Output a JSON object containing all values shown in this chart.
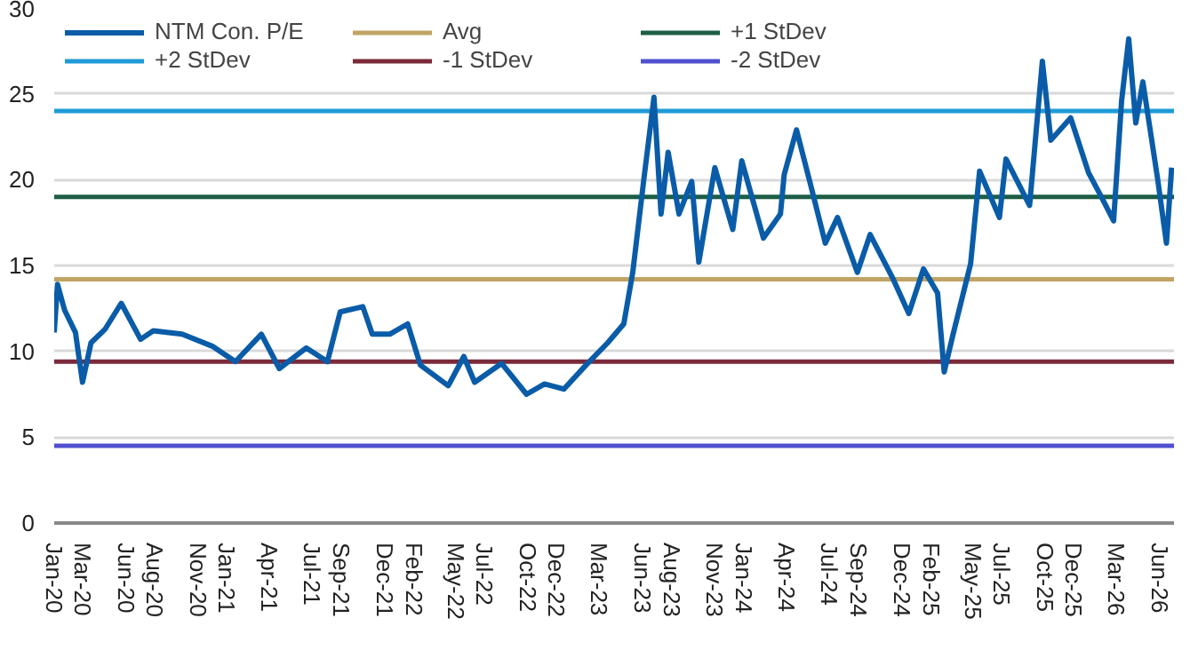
{
  "chart_data": {
    "type": "line",
    "legend": "top",
    "grid": "y",
    "line_style": "solid",
    "marker": "none",
    "xlim": [
      "2020-01-01",
      "2026-07-01"
    ],
    "ylim": [
      0,
      30
    ],
    "yticks": [
      0,
      5,
      10,
      15,
      20,
      25,
      30
    ],
    "xticks": [
      {
        "value": "2020-01-01",
        "label": "Jan-20"
      },
      {
        "value": "2020-03-01",
        "label": "Mar-20"
      },
      {
        "value": "2020-06-01",
        "label": "Jun-20"
      },
      {
        "value": "2020-08-01",
        "label": "Aug-20"
      },
      {
        "value": "2020-11-01",
        "label": "Nov-20"
      },
      {
        "value": "2021-01-01",
        "label": "Jan-21"
      },
      {
        "value": "2021-04-01",
        "label": "Apr-21"
      },
      {
        "value": "2021-07-01",
        "label": "Jul-21"
      },
      {
        "value": "2021-09-01",
        "label": "Sep-21"
      },
      {
        "value": "2021-12-01",
        "label": "Dec-21"
      },
      {
        "value": "2022-02-01",
        "label": "Feb-22"
      },
      {
        "value": "2022-05-01",
        "label": "May-22"
      },
      {
        "value": "2022-07-01",
        "label": "Jul-22"
      },
      {
        "value": "2022-10-01",
        "label": "Oct-22"
      },
      {
        "value": "2022-12-01",
        "label": "Dec-22"
      },
      {
        "value": "2023-03-01",
        "label": "Mar-23"
      },
      {
        "value": "2023-06-01",
        "label": "Jun-23"
      },
      {
        "value": "2023-08-01",
        "label": "Aug-23"
      },
      {
        "value": "2023-11-01",
        "label": "Nov-23"
      },
      {
        "value": "2024-01-01",
        "label": "Jan-24"
      },
      {
        "value": "2024-04-01",
        "label": "Apr-24"
      },
      {
        "value": "2024-07-01",
        "label": "Jul-24"
      },
      {
        "value": "2024-09-01",
        "label": "Sep-24"
      },
      {
        "value": "2024-12-01",
        "label": "Dec-24"
      },
      {
        "value": "2025-02-01",
        "label": "Feb-25"
      },
      {
        "value": "2025-05-01",
        "label": "May-25"
      },
      {
        "value": "2025-07-01",
        "label": "Jul-25"
      },
      {
        "value": "2025-10-01",
        "label": "Oct-25"
      },
      {
        "value": "2025-12-01",
        "label": "Dec-25"
      },
      {
        "value": "2026-03-01",
        "label": "Mar-26"
      },
      {
        "value": "2026-06-01",
        "label": "Jun-26"
      }
    ],
    "series": [
      {
        "name": "NTM Con. P/E",
        "color": "#0a5ca8",
        "x": [
          "2020-01-01",
          "2020-01-08",
          "2020-01-23",
          "2020-02-15",
          "2020-03-01",
          "2020-03-19",
          "2020-04-18",
          "2020-05-22",
          "2020-07-02",
          "2020-07-29",
          "2020-09-28",
          "2020-12-01",
          "2021-01-19",
          "2021-03-15",
          "2021-04-22",
          "2021-06-18",
          "2021-08-02",
          "2021-08-29",
          "2021-10-16",
          "2021-11-05",
          "2021-12-12",
          "2022-01-19",
          "2022-02-15",
          "2022-04-15",
          "2022-05-18",
          "2022-06-10",
          "2022-08-06",
          "2022-09-28",
          "2022-11-05",
          "2022-12-16",
          "2023-02-01",
          "2023-03-19",
          "2023-04-22",
          "2023-05-11",
          "2023-06-03",
          "2023-06-25",
          "2023-07-10",
          "2023-07-25",
          "2023-08-17",
          "2023-09-13",
          "2023-09-28",
          "2023-11-01",
          "2023-12-09",
          "2023-12-28",
          "2024-02-12",
          "2024-03-19",
          "2024-03-27",
          "2024-04-22",
          "2024-05-22",
          "2024-06-22",
          "2024-07-18",
          "2024-08-29",
          "2024-09-25",
          "2024-11-13",
          "2024-12-16",
          "2025-01-16",
          "2025-02-15",
          "2025-03-01",
          "2025-03-19",
          "2025-04-26",
          "2025-05-15",
          "2025-06-26",
          "2025-07-10",
          "2025-08-29",
          "2025-09-25",
          "2025-10-13",
          "2025-11-24",
          "2026-01-01",
          "2026-01-28",
          "2026-02-23",
          "2026-03-12",
          "2026-03-27",
          "2026-04-11",
          "2026-04-26",
          "2026-05-27",
          "2026-06-15",
          "2026-06-26"
        ],
        "values": [
          11.1,
          13.9,
          12.4,
          11.1,
          8.2,
          10.5,
          11.3,
          12.8,
          10.7,
          11.2,
          11.0,
          10.3,
          9.4,
          11.0,
          9.0,
          10.2,
          9.4,
          12.3,
          12.6,
          11.0,
          11.0,
          11.6,
          9.2,
          8.0,
          9.7,
          8.2,
          9.3,
          7.5,
          8.1,
          7.8,
          9.2,
          10.5,
          11.6,
          14.6,
          19.9,
          24.8,
          18.0,
          21.6,
          18.0,
          19.9,
          15.2,
          20.7,
          17.1,
          21.1,
          16.6,
          18.0,
          20.3,
          22.9,
          19.7,
          16.3,
          17.8,
          14.6,
          16.8,
          14.2,
          12.2,
          14.8,
          13.4,
          8.8,
          10.9,
          15.1,
          20.5,
          17.8,
          21.2,
          18.5,
          26.9,
          22.3,
          23.6,
          20.4,
          19.0,
          17.6,
          24.6,
          28.2,
          23.3,
          25.7,
          20.1,
          16.3,
          20.7
        ]
      }
    ],
    "ref_lines": [
      {
        "axis": "y",
        "value": 14.2,
        "label": "Avg",
        "color": "#bfa464"
      },
      {
        "axis": "y",
        "value": 19.0,
        "label": "+1 StDev",
        "color": "#1d5e45"
      },
      {
        "axis": "y",
        "value": 24.0,
        "label": "+2 StDev",
        "color": "#1f9bd7"
      },
      {
        "axis": "y",
        "value": 9.4,
        "label": "-1 StDev",
        "color": "#7b2a3a"
      },
      {
        "axis": "y",
        "value": 4.5,
        "label": "-2 StDev",
        "color": "#5050d0"
      }
    ]
  }
}
